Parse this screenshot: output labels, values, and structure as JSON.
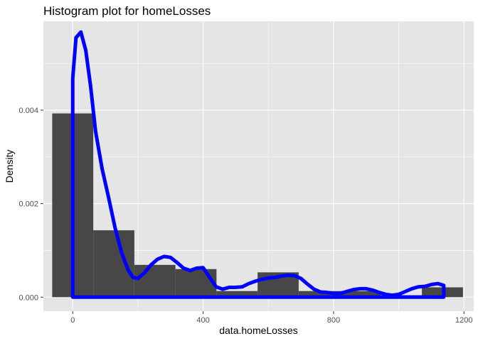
{
  "chart_data": {
    "type": "bar",
    "title": "Histogram plot for homeLosses",
    "xlabel": "data.homeLosses",
    "ylabel": "Density",
    "xlim": [
      -90,
      1230
    ],
    "ylim": [
      -0.0003,
      0.0059
    ],
    "x_ticks": [
      0,
      400,
      800,
      1200
    ],
    "x_tick_labels": [
      "0",
      "400",
      "800",
      "1200"
    ],
    "y_ticks": [
      0,
      0.002,
      0.004
    ],
    "y_tick_labels": [
      "0.000",
      "0.002",
      "0.004"
    ],
    "grid": true,
    "legend": "none",
    "colors": {
      "bars": "#474747",
      "density_line": "#0000ff",
      "panel": "#e5e5e5",
      "grid": "#ffffff"
    },
    "bins": [
      {
        "x_min": -63,
        "x_max": 63,
        "density": 0.00393
      },
      {
        "x_min": 63,
        "x_max": 189,
        "density": 0.00143
      },
      {
        "x_min": 189,
        "x_max": 315,
        "density": 0.00069
      },
      {
        "x_min": 315,
        "x_max": 441,
        "density": 0.0006
      },
      {
        "x_min": 441,
        "x_max": 567,
        "density": 0.00013
      },
      {
        "x_min": 567,
        "x_max": 693,
        "density": 0.00053
      },
      {
        "x_min": 693,
        "x_max": 819,
        "density": 0.00013
      },
      {
        "x_min": 819,
        "x_max": 945,
        "density": 0.00013
      },
      {
        "x_min": 945,
        "x_max": 1071,
        "density": 4e-05
      },
      {
        "x_min": 1071,
        "x_max": 1197,
        "density": 0.00021
      }
    ],
    "density_curve": {
      "x": [
        0,
        10,
        25,
        40,
        55,
        70,
        90,
        110,
        130,
        150,
        170,
        185,
        200,
        220,
        240,
        260,
        280,
        300,
        320,
        340,
        360,
        380,
        400,
        420,
        440,
        460,
        480,
        500,
        520,
        540,
        560,
        580,
        600,
        620,
        640,
        660,
        680,
        700,
        720,
        740,
        760,
        780,
        800,
        820,
        840,
        860,
        880,
        900,
        920,
        940,
        960,
        980,
        1000,
        1020,
        1040,
        1060,
        1080,
        1100,
        1120,
        1138
      ],
      "y": [
        0.00468,
        0.00555,
        0.00567,
        0.00528,
        0.0045,
        0.00355,
        0.00275,
        0.00213,
        0.00148,
        0.00095,
        0.00058,
        0.00042,
        0.0004,
        0.00052,
        0.00069,
        0.00081,
        0.00087,
        0.00085,
        0.00074,
        0.00062,
        0.00057,
        0.00062,
        0.00063,
        0.00042,
        0.00022,
        0.00017,
        0.00021,
        0.00021,
        0.00022,
        0.00029,
        0.00034,
        0.00038,
        0.00041,
        0.00042,
        0.00045,
        0.00047,
        0.00046,
        0.0004,
        0.00028,
        0.00017,
        0.00011,
        0.0001,
        8e-05,
        8e-05,
        0.00012,
        0.00016,
        0.00018,
        0.00018,
        0.00015,
        0.0001,
        6e-05,
        4e-05,
        6e-05,
        0.00012,
        0.00018,
        0.00022,
        0.00023,
        0.00027,
        0.00029,
        0.00025
      ]
    }
  }
}
